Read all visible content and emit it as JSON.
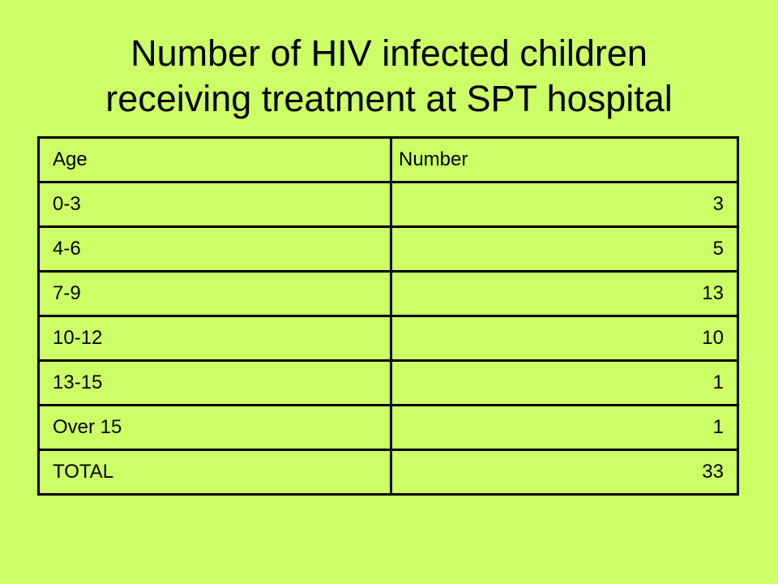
{
  "slide": {
    "background": "#ccff66",
    "title_line1": "Number of HIV infected children",
    "title_line2": "receiving treatment at SPT hospital"
  },
  "table": {
    "headers": [
      "Age",
      "Number"
    ],
    "rows": [
      {
        "age": "0-3",
        "number": "3"
      },
      {
        "age": "4-6",
        "number": "5"
      },
      {
        "age": "7-9",
        "number": "13"
      },
      {
        "age": "10-12",
        "number": "10"
      },
      {
        "age": "13-15",
        "number": "1"
      },
      {
        "age": "Over 15",
        "number": "1"
      },
      {
        "age": "TOTAL",
        "number": "33"
      }
    ]
  }
}
